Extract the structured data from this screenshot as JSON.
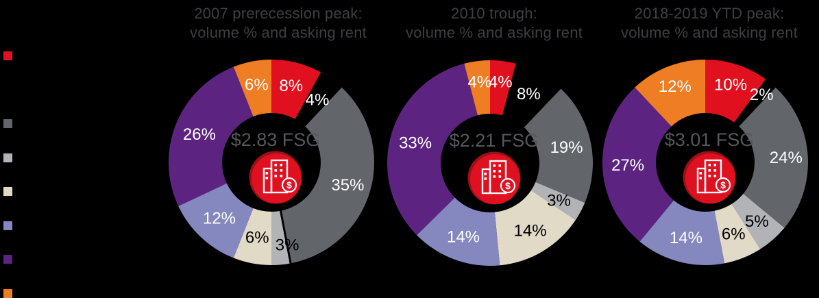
{
  "style": {
    "background": "#000000",
    "title_color": "#3E3F42",
    "center_label_color": "#56575B",
    "label_white": "#FFFFFF",
    "label_black": "#000000"
  },
  "icon": {
    "name": "buildings-dollar-icon",
    "bg": "#DF1020",
    "rim": "#9B1016",
    "fg": "#FFFFFF",
    "dollar": "$"
  },
  "legend": {
    "swatches": [
      {
        "color": "#E0101E"
      },
      {
        "color": "#000000"
      },
      {
        "color": "#62656A"
      },
      {
        "color": "#B1B3B7"
      },
      {
        "color": "#E0DAC6"
      },
      {
        "color": "#8488BF"
      },
      {
        "color": "#5C2480"
      },
      {
        "color": "#EF7D23"
      }
    ]
  },
  "chart_data": [
    {
      "type": "pie",
      "subtype": "donut",
      "title_lines": [
        "2007 prerecession peak:",
        "volume % and asking rent"
      ],
      "center_label": "$2.83 FSG",
      "divider_after_index": 2,
      "slices": [
        {
          "value": 8,
          "label": "8%",
          "color": "#E0101E",
          "label_color": "#FFFFFF",
          "label_r": 116
        },
        {
          "value": 4,
          "label": "4%",
          "color": "#000000",
          "label_color": "#FFFFFF",
          "label_r": 114
        },
        {
          "value": 35,
          "label": "35%",
          "color": "#62656A",
          "label_color": "#FFFFFF",
          "label_r": 116
        },
        {
          "value": 3,
          "label": "3%",
          "color": "#B1B3B7",
          "label_color": "#000000",
          "label_r": 122,
          "label_da": -5.5
        },
        {
          "value": 6,
          "label": "6%",
          "color": "#E0DAC6",
          "label_color": "#000000",
          "label_r": 111
        },
        {
          "value": 12,
          "label": "12%",
          "color": "#8488BF",
          "label_color": "#FFFFFF",
          "label_r": 111
        },
        {
          "value": 26,
          "label": "26%",
          "color": "#5C2480",
          "label_color": "#FFFFFF",
          "label_r": 113
        },
        {
          "value": 6,
          "label": "6%",
          "color": "#EF7D23",
          "label_color": "#FFFFFF",
          "label_r": 116
        }
      ]
    },
    {
      "type": "pie",
      "subtype": "donut",
      "title_lines": [
        "2010 trough:",
        "volume % and asking rent"
      ],
      "center_label": "$2.21 FSG",
      "slices": [
        {
          "value": 4,
          "label": "4%",
          "color": "#E0101E",
          "label_color": "#FFFFFF",
          "label_r": 120
        },
        {
          "value": 8,
          "label": "8%",
          "color": "#000000",
          "label_color": "#FFFFFF",
          "label_r": 116
        },
        {
          "value": 19,
          "label": "19%",
          "color": "#62656A",
          "label_color": "#FFFFFF",
          "label_r": 114
        },
        {
          "value": 3,
          "label": "3%",
          "color": "#B1B3B7",
          "label_color": "#000000",
          "label_r": 114
        },
        {
          "value": 14,
          "label": "14%",
          "color": "#E0DAC6",
          "label_color": "#000000",
          "label_r": 114
        },
        {
          "value": 14,
          "label": "14%",
          "color": "#8488BF",
          "label_color": "#FFFFFF",
          "label_r": 114
        },
        {
          "value": 33,
          "label": "33%",
          "color": "#5C2480",
          "label_color": "#FFFFFF",
          "label_r": 113
        },
        {
          "value": 4,
          "label": "4%",
          "color": "#EF7D23",
          "label_color": "#FFFFFF",
          "label_r": 120
        }
      ]
    },
    {
      "type": "pie",
      "subtype": "donut",
      "title_lines": [
        "2018-2019 YTD peak:",
        "volume % and asking rent"
      ],
      "center_label": "$3.01 FSG",
      "slices": [
        {
          "value": 10,
          "label": "10%",
          "color": "#E0101E",
          "label_color": "#FFFFFF",
          "label_r": 120
        },
        {
          "value": 2,
          "label": "2%",
          "color": "#000000",
          "label_color": "#FFFFFF",
          "label_r": 129
        },
        {
          "value": 24,
          "label": "24%",
          "color": "#62656A",
          "label_color": "#FFFFFF",
          "label_r": 118
        },
        {
          "value": 5,
          "label": "5%",
          "color": "#B1B3B7",
          "label_color": "#000000",
          "label_r": 114
        },
        {
          "value": 6,
          "label": "6%",
          "color": "#E0DAC6",
          "label_color": "#000000",
          "label_r": 112
        },
        {
          "value": 14,
          "label": "14%",
          "color": "#8488BF",
          "label_color": "#FFFFFF",
          "label_r": 113
        },
        {
          "value": 27,
          "label": "27%",
          "color": "#5C2480",
          "label_color": "#FFFFFF",
          "label_r": 113
        },
        {
          "value": 12,
          "label": "12%",
          "color": "#EF7D23",
          "label_color": "#FFFFFF",
          "label_r": 120
        }
      ]
    }
  ]
}
